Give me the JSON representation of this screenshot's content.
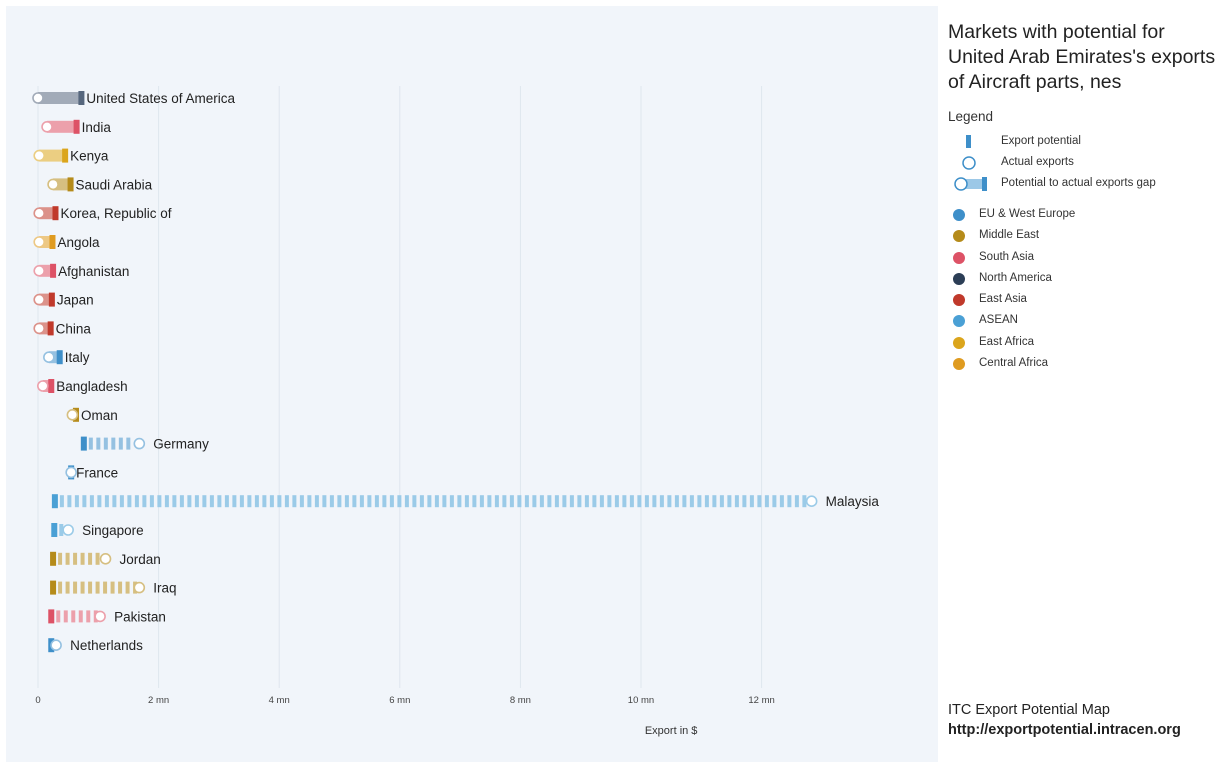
{
  "title": "Markets with potential for United Arab Emirates's exports of Aircraft parts, nes",
  "legend": {
    "heading": "Legend",
    "items": [
      {
        "label": "Export potential",
        "icon": "potential-marker-icon"
      },
      {
        "label": "Actual exports",
        "icon": "actual-exports-circle-icon"
      },
      {
        "label": "Potential to actual exports gap",
        "icon": "gap-bar-icon"
      }
    ],
    "regions": [
      {
        "name": "EU & West Europe",
        "color": "#3e8fc9"
      },
      {
        "name": "Middle East",
        "color": "#b58b1a"
      },
      {
        "name": "South Asia",
        "color": "#dd5266"
      },
      {
        "name": "North America",
        "color": "#2c3e56"
      },
      {
        "name": "East Asia",
        "color": "#c0392b"
      },
      {
        "name": "ASEAN",
        "color": "#4aa0d5"
      },
      {
        "name": "East Africa",
        "color": "#dba51c"
      },
      {
        "name": "Central Africa",
        "color": "#df9b20"
      }
    ]
  },
  "credit": {
    "line1": "ITC Export Potential Map",
    "line2": "http://exportpotential.intracen.org"
  },
  "chart_data": {
    "type": "dumbbell",
    "xlabel": "Export in $",
    "xlim": [
      0,
      15
    ],
    "xticks": [
      0,
      2,
      4,
      6,
      8,
      10,
      12
    ],
    "xtick_labels": [
      "0",
      "2 mn",
      "4 mn",
      "6 mn",
      "8 mn",
      "10 mn",
      "12 mn"
    ],
    "grid": true,
    "unit": "mn USD",
    "rows": [
      {
        "country": "United States of America",
        "region": "North America",
        "actual": 0.0,
        "potential": 0.72,
        "color": "#56677d"
      },
      {
        "country": "India",
        "region": "South Asia",
        "actual": 0.15,
        "potential": 0.64,
        "color": "#dd5266"
      },
      {
        "country": "Kenya",
        "region": "East Africa",
        "actual": 0.02,
        "potential": 0.45,
        "color": "#dba51c"
      },
      {
        "country": "Saudi Arabia",
        "region": "Middle East",
        "actual": 0.25,
        "potential": 0.54,
        "color": "#b58b1a"
      },
      {
        "country": "Korea, Republic of",
        "region": "East Asia",
        "actual": 0.02,
        "potential": 0.29,
        "color": "#c0392b"
      },
      {
        "country": "Angola",
        "region": "Central Africa",
        "actual": 0.02,
        "potential": 0.24,
        "color": "#df9b20"
      },
      {
        "country": "Afghanistan",
        "region": "South Asia",
        "actual": 0.02,
        "potential": 0.25,
        "color": "#dd5266"
      },
      {
        "country": "Japan",
        "region": "East Asia",
        "actual": 0.02,
        "potential": 0.23,
        "color": "#c0392b"
      },
      {
        "country": "China",
        "region": "East Asia",
        "actual": 0.02,
        "potential": 0.21,
        "color": "#c0392b"
      },
      {
        "country": "Italy",
        "region": "EU & West Europe",
        "actual": 0.18,
        "potential": 0.36,
        "color": "#3e8fc9"
      },
      {
        "country": "Bangladesh",
        "region": "South Asia",
        "actual": 0.08,
        "potential": 0.22,
        "color": "#dd5266"
      },
      {
        "country": "Oman",
        "region": "Middle East",
        "actual": 0.57,
        "potential": 0.63,
        "color": "#b58b1a"
      },
      {
        "country": "Germany",
        "region": "EU & West Europe",
        "actual": 1.68,
        "potential": 0.76,
        "color": "#3e8fc9"
      },
      {
        "country": "France",
        "region": "EU & West Europe",
        "actual": 0.55,
        "potential": 0.55,
        "color": "#3e8fc9"
      },
      {
        "country": "Malaysia",
        "region": "ASEAN",
        "actual": 12.83,
        "potential": 0.28,
        "color": "#4aa0d5"
      },
      {
        "country": "Singapore",
        "region": "ASEAN",
        "actual": 0.5,
        "potential": 0.27,
        "color": "#4aa0d5"
      },
      {
        "country": "Jordan",
        "region": "Middle East",
        "actual": 1.12,
        "potential": 0.25,
        "color": "#b58b1a"
      },
      {
        "country": "Iraq",
        "region": "Middle East",
        "actual": 1.68,
        "potential": 0.25,
        "color": "#b58b1a"
      },
      {
        "country": "Pakistan",
        "region": "South Asia",
        "actual": 1.03,
        "potential": 0.22,
        "color": "#dd5266"
      },
      {
        "country": "Netherlands",
        "region": "EU & West Europe",
        "actual": 0.3,
        "potential": 0.22,
        "color": "#3e8fc9"
      }
    ]
  }
}
